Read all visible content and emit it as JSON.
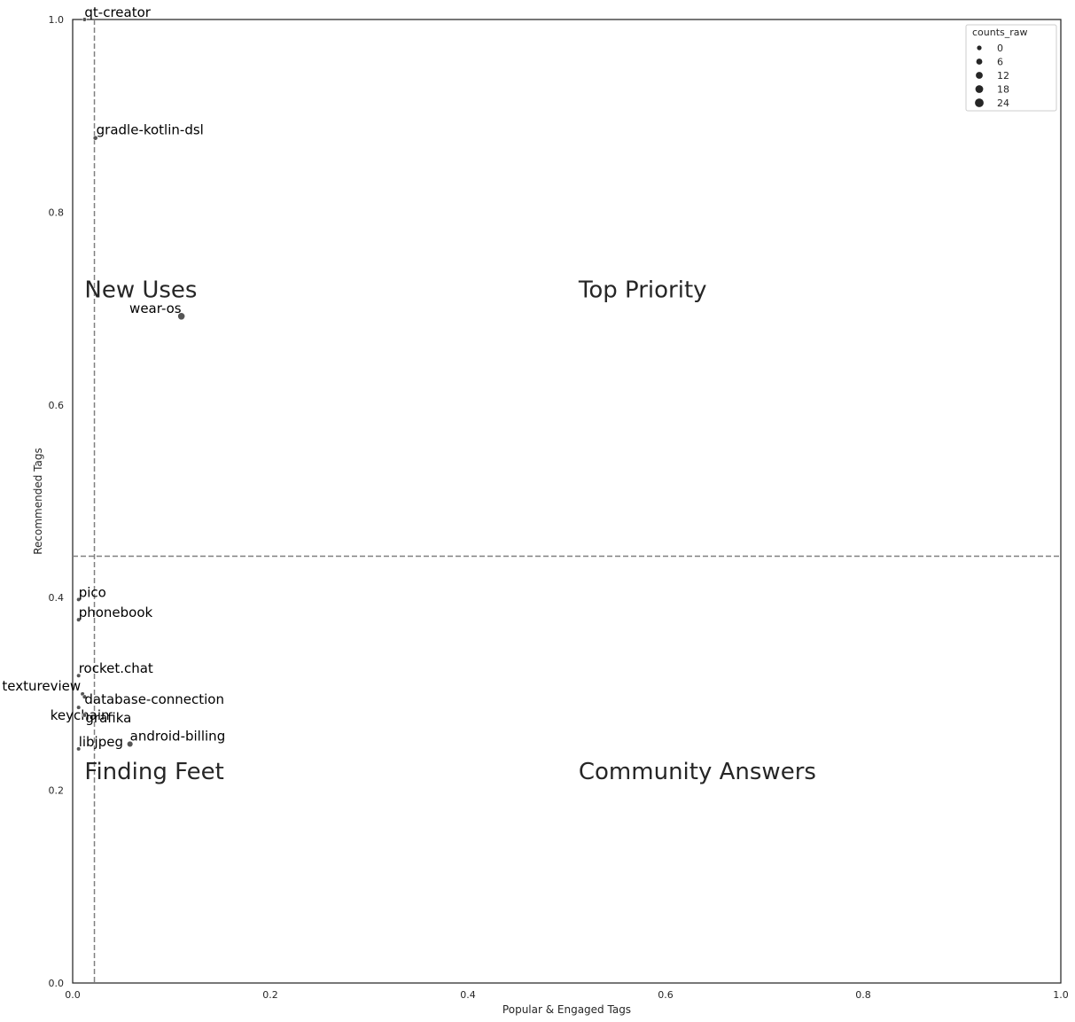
{
  "chart_data": {
    "type": "scatter",
    "xlabel": "Popular & Engaged Tags",
    "ylabel": "Recommended Tags",
    "xlim": [
      0,
      1
    ],
    "ylim": [
      0,
      1
    ],
    "xticks": [
      "0.0",
      "0.2",
      "0.4",
      "0.6",
      "0.8",
      "1.0"
    ],
    "yticks": [
      "0.0",
      "0.2",
      "0.4",
      "0.6",
      "0.8",
      "1.0"
    ],
    "grid": false,
    "vline_x": 0.022,
    "hline_y": 0.443,
    "point_color": "#555555",
    "reference_line_color": "#808080",
    "points": [
      {
        "label": "qt-creator",
        "x": 0.012,
        "y": 1.0,
        "size": 1
      },
      {
        "label": "gradle-kotlin-dsl",
        "x": 0.023,
        "y": 0.877,
        "size": 2
      },
      {
        "label": "wear-os",
        "x": 0.11,
        "y": 0.692,
        "size": 12
      },
      {
        "label": "pico",
        "x": 0.006,
        "y": 0.398,
        "size": 1
      },
      {
        "label": "phonebook",
        "x": 0.006,
        "y": 0.377,
        "size": 1
      },
      {
        "label": "rocket.chat",
        "x": 0.006,
        "y": 0.319,
        "size": 1
      },
      {
        "label": "textureview",
        "x": 0.01,
        "y": 0.3,
        "size": 1
      },
      {
        "label": "database-connection",
        "x": 0.012,
        "y": 0.297,
        "size": 1
      },
      {
        "label": "keychain",
        "x": 0.006,
        "y": 0.286,
        "size": 1
      },
      {
        "label": "grafika",
        "x": 0.012,
        "y": 0.278,
        "size": 1
      },
      {
        "label": "libjpeg",
        "x": 0.006,
        "y": 0.243,
        "size": 1
      },
      {
        "label": "android-billing",
        "x": 0.058,
        "y": 0.248,
        "size": 6
      }
    ],
    "quadrant_labels": [
      {
        "text": "New Uses",
        "x": 0.012,
        "y": 0.72
      },
      {
        "text": "Top Priority",
        "x": 0.512,
        "y": 0.72
      },
      {
        "text": "Finding Feet",
        "x": 0.012,
        "y": 0.22
      },
      {
        "text": "Community Answers",
        "x": 0.512,
        "y": 0.22
      }
    ],
    "legend": {
      "title": "counts_raw",
      "position": "top-right",
      "entries": [
        "0",
        "6",
        "12",
        "18",
        "24"
      ]
    }
  }
}
